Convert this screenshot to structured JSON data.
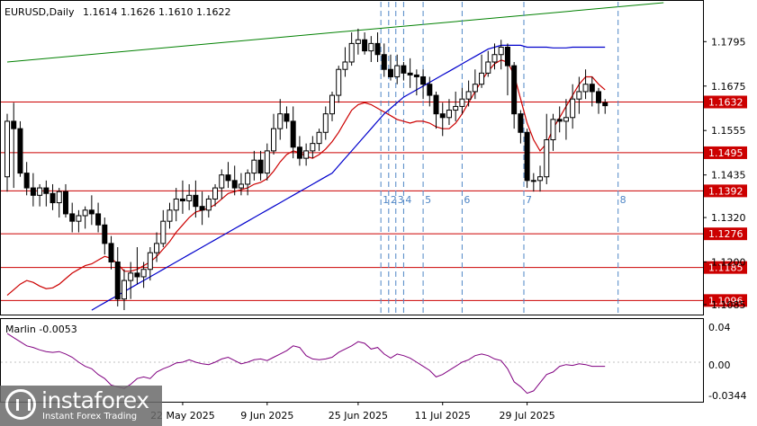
{
  "header": {
    "symbol": "EURUSD,Daily",
    "ohlc": "1.1614 1.1626 1.1610 1.1622"
  },
  "indicator": {
    "label": "Marlin -0.0053",
    "ticks": [
      "0.04",
      "0.00",
      "-0.0344"
    ]
  },
  "brand": {
    "name": "instaforex",
    "tagline": "Instant Forex Trading"
  },
  "colors": {
    "candle": "#000000",
    "support_resistance": "#cc0000",
    "label_bg": "#cc0000",
    "ma_fast": "#cc0000",
    "ma_slow": "#0000cc",
    "trendline": "#008000",
    "marlin": "#800080",
    "vlines": "#4f86c6"
  },
  "chart_data": {
    "type": "candlestick",
    "title": "EURUSD,Daily",
    "ylim": [
      1.1058,
      1.1905
    ],
    "price_ticks": [
      "1.1795",
      "1.1675",
      "1.1555",
      "1.1435",
      "1.1320",
      "1.1200",
      "1.1085"
    ],
    "time_labels": [
      "22 May 2025",
      "9 Jun 2025",
      "25 Jun 2025",
      "11 Jul 2025",
      "29 Jul 2025"
    ],
    "time_label_index": [
      27,
      40,
      54,
      67,
      80
    ],
    "horizontal_levels": [
      {
        "label": "1.1632",
        "value": 1.1632
      },
      {
        "label": "1.1495",
        "value": 1.1495
      },
      {
        "label": "1.1392",
        "value": 1.1392
      },
      {
        "label": "1.1276",
        "value": 1.1276
      },
      {
        "label": "1.1185",
        "value": 1.1185
      },
      {
        "label": "1.1096",
        "value": 1.1096
      }
    ],
    "vertical_markers": [
      {
        "label": "1",
        "index": 57.5
      },
      {
        "label": "2",
        "index": 58.7
      },
      {
        "label": "3",
        "index": 59.8
      },
      {
        "label": "4",
        "index": 61.0
      },
      {
        "label": "5",
        "index": 64.0
      },
      {
        "label": "6",
        "index": 70.0
      },
      {
        "label": "7",
        "index": 79.5
      },
      {
        "label": "8",
        "index": 94.0
      }
    ],
    "trendline": {
      "i0": 0,
      "p0": 1.174,
      "i1": 101,
      "p1": 1.19
    },
    "candles": {
      "o": [
        1.143,
        1.158,
        1.156,
        1.144,
        1.14,
        1.138,
        1.14,
        1.1385,
        1.136,
        1.139,
        1.133,
        1.131,
        1.1325,
        1.134,
        1.133,
        1.13,
        1.125,
        1.12,
        1.11,
        1.115,
        1.117,
        1.116,
        1.118,
        1.1225,
        1.125,
        1.131,
        1.134,
        1.137,
        1.1365,
        1.138,
        1.135,
        1.134,
        1.137,
        1.14,
        1.1435,
        1.142,
        1.14,
        1.141,
        1.144,
        1.1475,
        1.144,
        1.15,
        1.156,
        1.16,
        1.158,
        1.151,
        1.148,
        1.15,
        1.152,
        1.155,
        1.16,
        1.165,
        1.172,
        1.174,
        1.179,
        1.18,
        1.177,
        1.179,
        1.176,
        1.172,
        1.17,
        1.173,
        1.171,
        1.1705,
        1.17,
        1.168,
        1.165,
        1.16,
        1.159,
        1.161,
        1.162,
        1.164,
        1.166,
        1.168,
        1.171,
        1.174,
        1.176,
        1.178,
        1.173,
        1.16,
        1.155,
        1.142,
        1.142,
        1.143,
        1.153,
        1.1585,
        1.158,
        1.159,
        1.164,
        1.166,
        1.168,
        1.166,
        1.163
      ],
      "h": [
        1.16,
        1.163,
        1.158,
        1.147,
        1.144,
        1.141,
        1.142,
        1.141,
        1.14,
        1.141,
        1.136,
        1.134,
        1.135,
        1.138,
        1.136,
        1.132,
        1.127,
        1.124,
        1.118,
        1.12,
        1.124,
        1.12,
        1.124,
        1.128,
        1.134,
        1.136,
        1.14,
        1.142,
        1.141,
        1.142,
        1.139,
        1.138,
        1.141,
        1.145,
        1.147,
        1.146,
        1.144,
        1.145,
        1.15,
        1.15,
        1.152,
        1.16,
        1.164,
        1.162,
        1.162,
        1.154,
        1.152,
        1.154,
        1.156,
        1.162,
        1.166,
        1.173,
        1.178,
        1.182,
        1.183,
        1.182,
        1.181,
        1.182,
        1.179,
        1.176,
        1.176,
        1.174,
        1.175,
        1.172,
        1.172,
        1.17,
        1.166,
        1.163,
        1.164,
        1.166,
        1.167,
        1.169,
        1.172,
        1.176,
        1.177,
        1.179,
        1.18,
        1.179,
        1.174,
        1.161,
        1.156,
        1.144,
        1.146,
        1.16,
        1.16,
        1.162,
        1.164,
        1.168,
        1.17,
        1.172,
        1.17,
        1.167,
        1.164
      ],
      "l": [
        1.139,
        1.14,
        1.143,
        1.138,
        1.135,
        1.135,
        1.135,
        1.134,
        1.132,
        1.132,
        1.128,
        1.128,
        1.129,
        1.13,
        1.128,
        1.122,
        1.118,
        1.108,
        1.107,
        1.11,
        1.114,
        1.113,
        1.115,
        1.12,
        1.124,
        1.129,
        1.131,
        1.133,
        1.134,
        1.132,
        1.13,
        1.132,
        1.135,
        1.137,
        1.14,
        1.138,
        1.138,
        1.138,
        1.142,
        1.142,
        1.142,
        1.149,
        1.153,
        1.156,
        1.148,
        1.146,
        1.146,
        1.148,
        1.15,
        1.153,
        1.158,
        1.163,
        1.17,
        1.173,
        1.176,
        1.176,
        1.174,
        1.174,
        1.17,
        1.169,
        1.168,
        1.169,
        1.167,
        1.165,
        1.164,
        1.162,
        1.156,
        1.154,
        1.157,
        1.158,
        1.16,
        1.162,
        1.164,
        1.167,
        1.17,
        1.172,
        1.172,
        1.165,
        1.156,
        1.152,
        1.14,
        1.139,
        1.139,
        1.141,
        1.15,
        1.155,
        1.153,
        1.156,
        1.16,
        1.164,
        1.162,
        1.16,
        1.16
      ],
      "c": [
        1.158,
        1.156,
        1.144,
        1.14,
        1.138,
        1.14,
        1.1385,
        1.136,
        1.139,
        1.133,
        1.131,
        1.1325,
        1.134,
        1.133,
        1.13,
        1.125,
        1.12,
        1.11,
        1.115,
        1.117,
        1.116,
        1.118,
        1.1225,
        1.125,
        1.131,
        1.134,
        1.137,
        1.1365,
        1.138,
        1.135,
        1.134,
        1.137,
        1.14,
        1.1435,
        1.142,
        1.14,
        1.141,
        1.144,
        1.1475,
        1.144,
        1.15,
        1.156,
        1.16,
        1.158,
        1.151,
        1.148,
        1.15,
        1.152,
        1.155,
        1.16,
        1.165,
        1.172,
        1.174,
        1.179,
        1.18,
        1.177,
        1.179,
        1.176,
        1.172,
        1.17,
        1.173,
        1.171,
        1.1705,
        1.17,
        1.168,
        1.165,
        1.16,
        1.159,
        1.161,
        1.162,
        1.164,
        1.166,
        1.168,
        1.171,
        1.174,
        1.176,
        1.178,
        1.173,
        1.16,
        1.155,
        1.142,
        1.142,
        1.143,
        1.153,
        1.1585,
        1.158,
        1.159,
        1.164,
        1.166,
        1.168,
        1.166,
        1.163,
        1.1622
      ]
    },
    "ma_fast": {
      "start": 0,
      "values": [
        1.111,
        1.1125,
        1.114,
        1.115,
        1.1145,
        1.1135,
        1.1128,
        1.113,
        1.114,
        1.1155,
        1.117,
        1.118,
        1.119,
        1.1195,
        1.1205,
        1.1215,
        1.121,
        1.1195,
        1.1175,
        1.1175,
        1.118,
        1.119,
        1.12,
        1.1215,
        1.1235,
        1.1255,
        1.128,
        1.13,
        1.132,
        1.1335,
        1.134,
        1.1345,
        1.1355,
        1.137,
        1.1385,
        1.139,
        1.1395,
        1.14,
        1.141,
        1.1415,
        1.1425,
        1.1445,
        1.147,
        1.149,
        1.15,
        1.1495,
        1.1485,
        1.148,
        1.149,
        1.1505,
        1.1525,
        1.155,
        1.158,
        1.161,
        1.1625,
        1.163,
        1.1625,
        1.1615,
        1.1605,
        1.1595,
        1.1585,
        1.158,
        1.1575,
        1.158,
        1.158,
        1.1575,
        1.1565,
        1.156,
        1.156,
        1.1575,
        1.16,
        1.163,
        1.166,
        1.169,
        1.1715,
        1.1735,
        1.1745,
        1.174,
        1.1705,
        1.164,
        1.1575,
        1.153,
        1.15,
        1.152,
        1.156,
        1.159,
        1.162,
        1.165,
        1.168,
        1.17,
        1.17,
        1.168,
        1.1665
      ]
    },
    "ma_slow": {
      "start": 13,
      "values": [
        1.107,
        1.108,
        1.109,
        1.11,
        1.111,
        1.112,
        1.113,
        1.114,
        1.115,
        1.116,
        1.117,
        1.118,
        1.119,
        1.12,
        1.121,
        1.122,
        1.123,
        1.124,
        1.125,
        1.126,
        1.127,
        1.128,
        1.129,
        1.13,
        1.131,
        1.132,
        1.133,
        1.134,
        1.135,
        1.136,
        1.137,
        1.138,
        1.139,
        1.14,
        1.141,
        1.142,
        1.143,
        1.144,
        1.146,
        1.148,
        1.15,
        1.152,
        1.154,
        1.156,
        1.158,
        1.16,
        1.1615,
        1.163,
        1.1645,
        1.1655,
        1.1665,
        1.1675,
        1.1685,
        1.1695,
        1.1705,
        1.1715,
        1.1725,
        1.1735,
        1.1745,
        1.1755,
        1.1765,
        1.1775,
        1.178,
        1.1785,
        1.1785,
        1.1785,
        1.1785,
        1.178,
        1.178,
        1.178,
        1.178,
        1.1778,
        1.1778,
        1.1778,
        1.178,
        1.178,
        1.178,
        1.178,
        1.178,
        1.178
      ]
    },
    "marlin": {
      "ylim": [
        -0.045,
        0.045
      ],
      "values": [
        0.035,
        0.03,
        0.025,
        0.02,
        0.018,
        0.015,
        0.013,
        0.012,
        0.013,
        0.01,
        0.006,
        0.0,
        -0.005,
        -0.008,
        -0.015,
        -0.02,
        -0.028,
        -0.03,
        -0.032,
        -0.027,
        -0.02,
        -0.018,
        -0.02,
        -0.012,
        -0.008,
        -0.005,
        -0.001,
        0.0,
        0.003,
        0.0,
        -0.002,
        -0.003,
        0.0,
        0.004,
        0.006,
        0.002,
        -0.002,
        0.0,
        0.003,
        0.004,
        0.002,
        0.006,
        0.01,
        0.014,
        0.02,
        0.018,
        0.008,
        0.004,
        0.003,
        0.004,
        0.006,
        0.012,
        0.016,
        0.02,
        0.025,
        0.023,
        0.016,
        0.018,
        0.01,
        0.005,
        0.01,
        0.008,
        0.005,
        0.0,
        -0.005,
        -0.01,
        -0.018,
        -0.015,
        -0.01,
        -0.005,
        0.0,
        0.003,
        0.008,
        0.01,
        0.008,
        0.004,
        0.002,
        -0.008,
        -0.024,
        -0.03,
        -0.038,
        -0.035,
        -0.025,
        -0.015,
        -0.012,
        -0.005,
        -0.003,
        -0.004,
        -0.002,
        -0.003,
        -0.005,
        -0.005,
        -0.005
      ]
    }
  }
}
